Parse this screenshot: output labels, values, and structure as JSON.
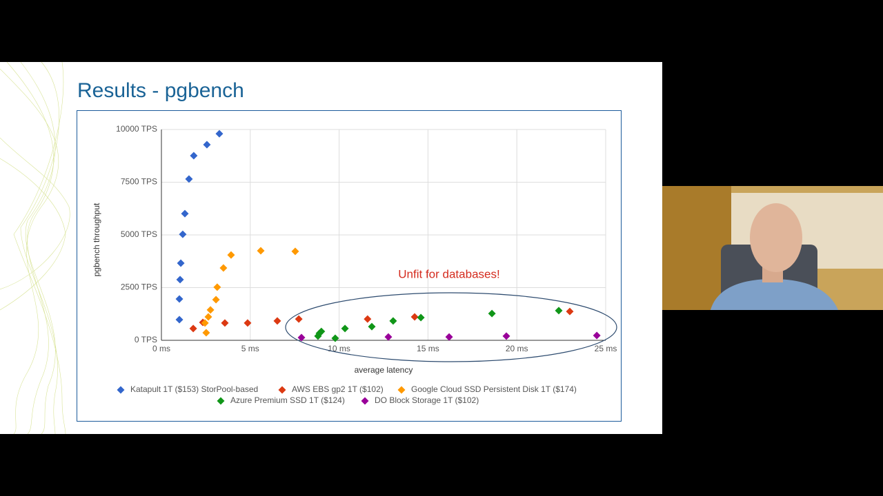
{
  "chart_data": {
    "type": "scatter",
    "title": "Results - pgbench",
    "x_label": "average latency",
    "y_label": "pgbench throughput",
    "annotation": "Unfit for databases!",
    "xlim": [
      0,
      25
    ],
    "xticks": [
      {
        "value": 0,
        "label": "0 ms"
      },
      {
        "value": 5,
        "label": "5 ms"
      },
      {
        "value": 10,
        "label": "10 ms"
      },
      {
        "value": 15,
        "label": "15 ms"
      },
      {
        "value": 20,
        "label": "20 ms"
      },
      {
        "value": 25,
        "label": "25 ms"
      }
    ],
    "ylim": [
      0,
      10000
    ],
    "yticks": [
      {
        "value": 0,
        "label": "0 TPS"
      },
      {
        "value": 2500,
        "label": "2500 TPS"
      },
      {
        "value": 5000,
        "label": "5000 TPS"
      },
      {
        "value": 7500,
        "label": "7500 TPS"
      },
      {
        "value": 10000,
        "label": "10000 TPS"
      }
    ],
    "grid": true,
    "legend": "bottom",
    "series": [
      {
        "name": "Katapult 1T ($153) StorPool-based",
        "color": "#3366cc",
        "x": [
          1.01,
          1.01,
          1.05,
          1.09,
          1.2,
          1.32,
          1.55,
          1.82,
          2.56,
          3.26
        ],
        "values": [
          980,
          1960,
          2880,
          3660,
          5030,
          6010,
          7650,
          8760,
          9280,
          9800
        ]
      },
      {
        "name": "AWS EBS gp2 1T ($102)",
        "color": "#dc3912",
        "x": [
          1.79,
          2.33,
          3.57,
          4.85,
          6.52,
          7.73,
          11.6,
          14.25,
          22.98
        ],
        "values": [
          560,
          850,
          820,
          820,
          920,
          1010,
          1010,
          1110,
          1370
        ]
      },
      {
        "name": "Google Cloud SSD Persistent Disk 1T ($174)",
        "color": "#ff9900",
        "x": [
          2.52,
          2.45,
          2.64,
          2.76,
          3.07,
          3.14,
          3.49,
          3.92,
          5.59,
          7.53
        ],
        "values": [
          360,
          820,
          1110,
          1440,
          1930,
          2520,
          3430,
          4050,
          4250,
          4220
        ]
      },
      {
        "name": "Azure Premium SSD 1T ($124)",
        "color": "#109618",
        "x": [
          8.81,
          8.89,
          9.0,
          9.78,
          10.33,
          11.84,
          13.04,
          14.6,
          18.6,
          22.36
        ],
        "values": [
          200,
          330,
          420,
          100,
          560,
          650,
          920,
          1080,
          1270,
          1410
        ]
      },
      {
        "name": "DO Block Storage 1T ($102)",
        "color": "#990099",
        "x": [
          7.88,
          12.77,
          16.19,
          19.41,
          24.5
        ],
        "values": [
          130,
          160,
          160,
          200,
          230
        ]
      }
    ]
  }
}
